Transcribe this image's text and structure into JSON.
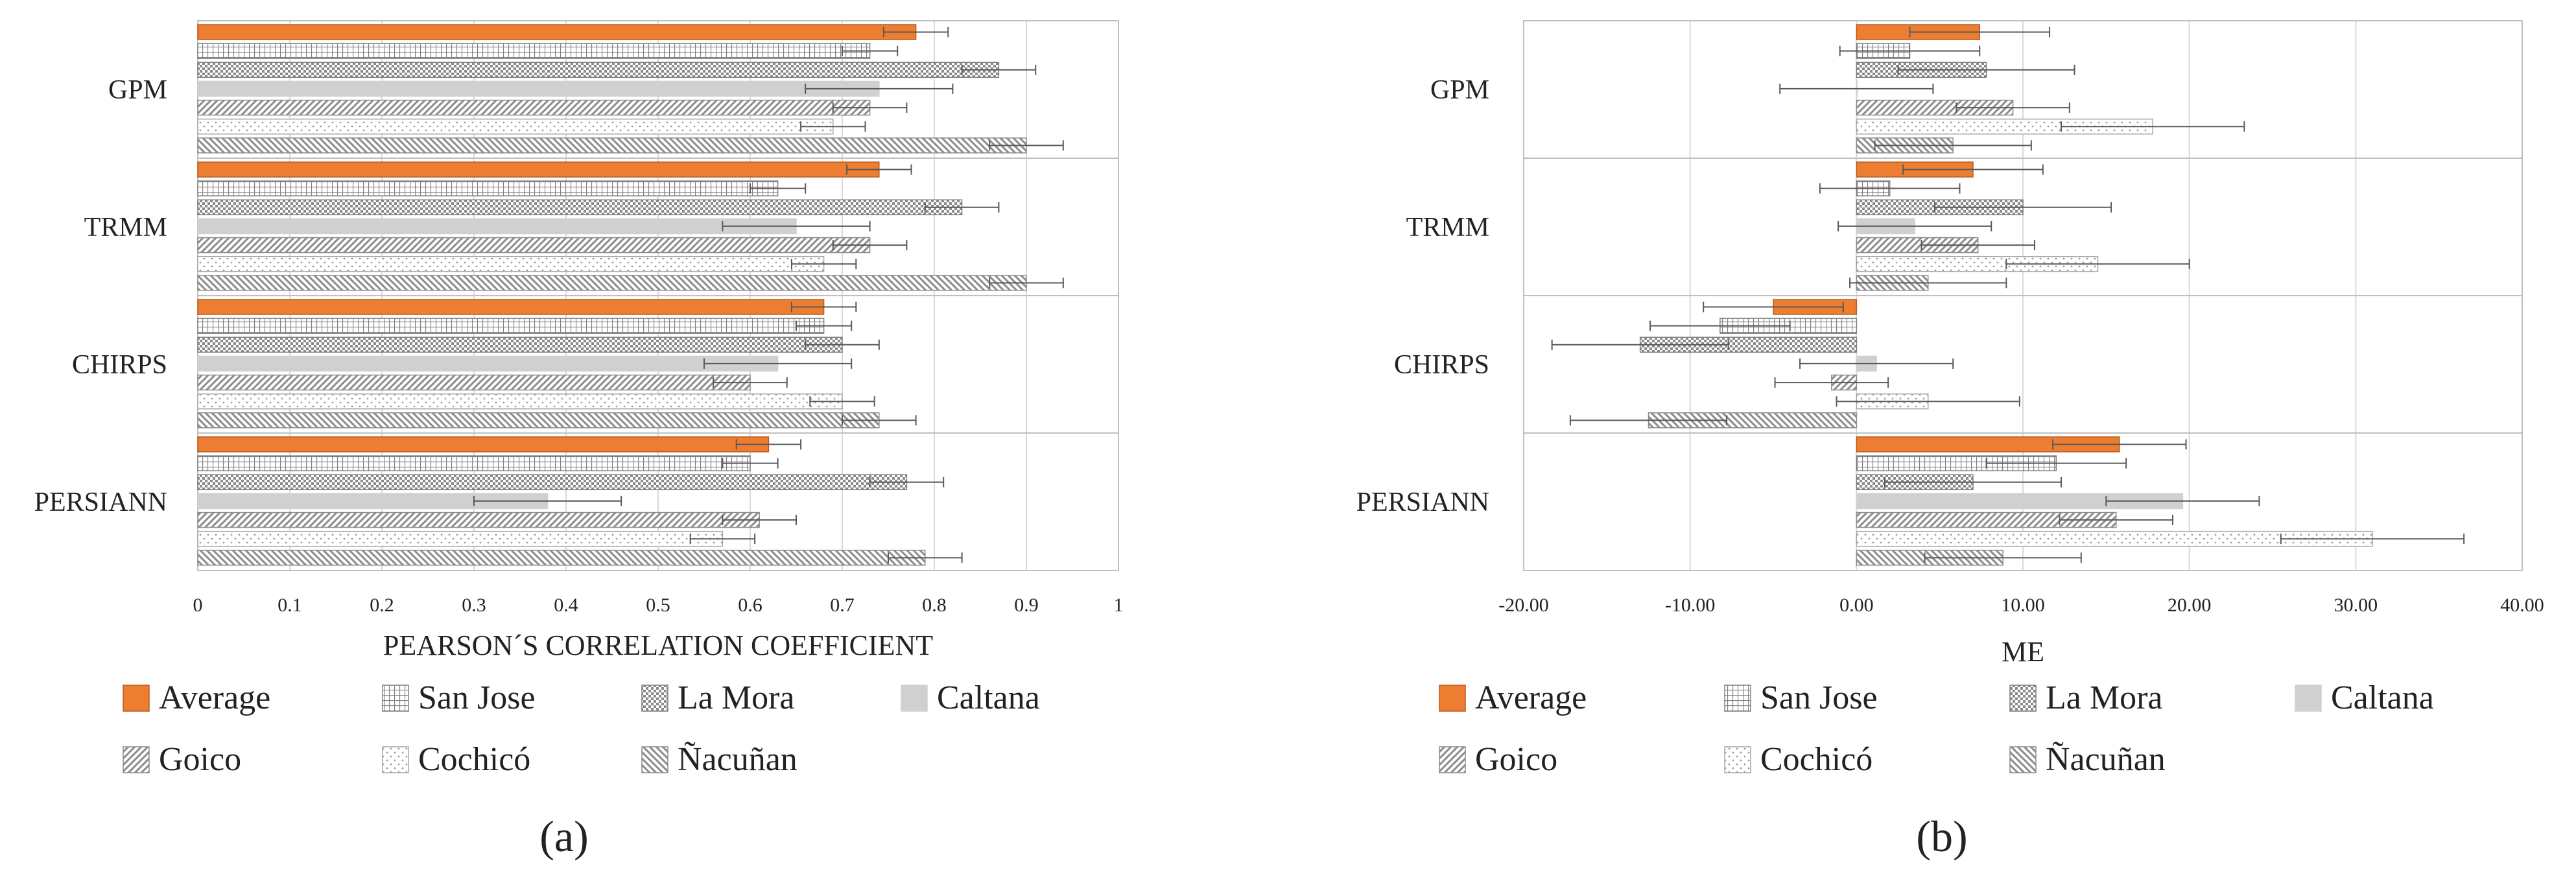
{
  "series_styles": [
    {
      "name": "Average",
      "pattern": "solid-orange",
      "fill": "#ed7d31",
      "stroke": "#b85c1f"
    },
    {
      "name": "San Jose",
      "pattern": "grid",
      "fill": "#ffffff",
      "stroke": "#7f7f7f"
    },
    {
      "name": "La Mora",
      "pattern": "checker",
      "fill": "#d9d9d9",
      "stroke": "#7f7f7f"
    },
    {
      "name": "Caltana",
      "pattern": "solid-gray",
      "fill": "#d0d0d0",
      "stroke": "#d0d0d0"
    },
    {
      "name": "Goico",
      "pattern": "diagonal-up",
      "fill": "#ffffff",
      "stroke": "#8c8c8c"
    },
    {
      "name": "Cochicó",
      "pattern": "dots",
      "fill": "#ffffff",
      "stroke": "#a6a6a6"
    },
    {
      "name": "Ñacuñan",
      "pattern": "diagonal-down",
      "fill": "#ffffff",
      "stroke": "#8c8c8c"
    }
  ],
  "colors": {
    "axis": "#bfbfbf",
    "grid": "#d9d9d9",
    "error_bar": "#595959",
    "text": "#222222"
  },
  "chart_data": [
    {
      "type": "bar",
      "orientation": "horizontal",
      "panel_label": "(a)",
      "title": "",
      "xlabel": "PEARSON´S CORRELATION COEFFICIENT",
      "ylabel": "",
      "xlim": [
        0,
        1
      ],
      "ticks": [
        0,
        0.1,
        0.2,
        0.3,
        0.4,
        0.5,
        0.6,
        0.7,
        0.8,
        0.9,
        1
      ],
      "tick_labels": [
        "0",
        "0.1",
        "0.2",
        "0.3",
        "0.4",
        "0.5",
        "0.6",
        "0.7",
        "0.8",
        "0.9",
        "1"
      ],
      "categories": [
        "GPM",
        "TRMM",
        "CHIRPS",
        "PERSIANN"
      ],
      "legend": [
        "Average",
        "San Jose",
        "La Mora",
        "Caltana",
        "Goico",
        "Cochicó",
        "Ñacuñan"
      ],
      "series": [
        {
          "name": "Average",
          "values": [
            0.78,
            0.74,
            0.68,
            0.62
          ],
          "errors": [
            0.035,
            0.035,
            0.035,
            0.035
          ]
        },
        {
          "name": "San Jose",
          "values": [
            0.73,
            0.63,
            0.68,
            0.6
          ],
          "errors": [
            0.03,
            0.03,
            0.03,
            0.03
          ]
        },
        {
          "name": "La Mora",
          "values": [
            0.87,
            0.83,
            0.7,
            0.77
          ],
          "errors": [
            0.04,
            0.04,
            0.04,
            0.04
          ]
        },
        {
          "name": "Caltana",
          "values": [
            0.74,
            0.65,
            0.63,
            0.38
          ],
          "errors": [
            0.08,
            0.08,
            0.08,
            0.08
          ]
        },
        {
          "name": "Goico",
          "values": [
            0.73,
            0.73,
            0.6,
            0.61
          ],
          "errors": [
            0.04,
            0.04,
            0.04,
            0.04
          ]
        },
        {
          "name": "Cochicó",
          "values": [
            0.69,
            0.68,
            0.7,
            0.57
          ],
          "errors": [
            0.035,
            0.035,
            0.035,
            0.035
          ]
        },
        {
          "name": "Ñacuñan",
          "values": [
            0.9,
            0.9,
            0.74,
            0.79
          ],
          "errors": [
            0.04,
            0.04,
            0.04,
            0.04
          ]
        }
      ]
    },
    {
      "type": "bar",
      "orientation": "horizontal",
      "panel_label": "(b)",
      "title": "",
      "xlabel": "ME",
      "ylabel": "",
      "xlim": [
        -20,
        40
      ],
      "ticks": [
        -20,
        -10,
        0,
        10,
        20,
        30,
        40
      ],
      "tick_labels": [
        "-20.00",
        "-10.00",
        "0.00",
        "10.00",
        "20.00",
        "30.00",
        "40.00"
      ],
      "categories": [
        "GPM",
        "TRMM",
        "CHIRPS",
        "PERSIANN"
      ],
      "legend": [
        "Average",
        "San Jose",
        "La Mora",
        "Caltana",
        "Goico",
        "Cochicó",
        "Ñacuñan"
      ],
      "series": [
        {
          "name": "Average",
          "values": [
            7.4,
            7.0,
            -5.0,
            15.8
          ],
          "errors": [
            4.2,
            4.2,
            4.2,
            4.0
          ]
        },
        {
          "name": "San Jose",
          "values": [
            3.2,
            2.0,
            -8.2,
            12.0
          ],
          "errors": [
            4.2,
            4.2,
            4.2,
            4.2
          ]
        },
        {
          "name": "La Mora",
          "values": [
            7.8,
            10.0,
            -13.0,
            7.0
          ],
          "errors": [
            5.3,
            5.3,
            5.3,
            5.3
          ]
        },
        {
          "name": "Caltana",
          "values": [
            0.0,
            3.5,
            1.2,
            19.6
          ],
          "errors": [
            4.6,
            4.6,
            4.6,
            4.6
          ]
        },
        {
          "name": "Goico",
          "values": [
            9.4,
            7.3,
            -1.5,
            15.6
          ],
          "errors": [
            3.4,
            3.4,
            3.4,
            3.4
          ]
        },
        {
          "name": "Cochicó",
          "values": [
            17.8,
            14.5,
            4.3,
            31.0
          ],
          "errors": [
            5.5,
            5.5,
            5.5,
            5.5
          ]
        },
        {
          "name": "Ñacuñan",
          "values": [
            5.8,
            4.3,
            -12.5,
            8.8
          ],
          "errors": [
            4.7,
            4.7,
            4.7,
            4.7
          ]
        }
      ]
    }
  ]
}
